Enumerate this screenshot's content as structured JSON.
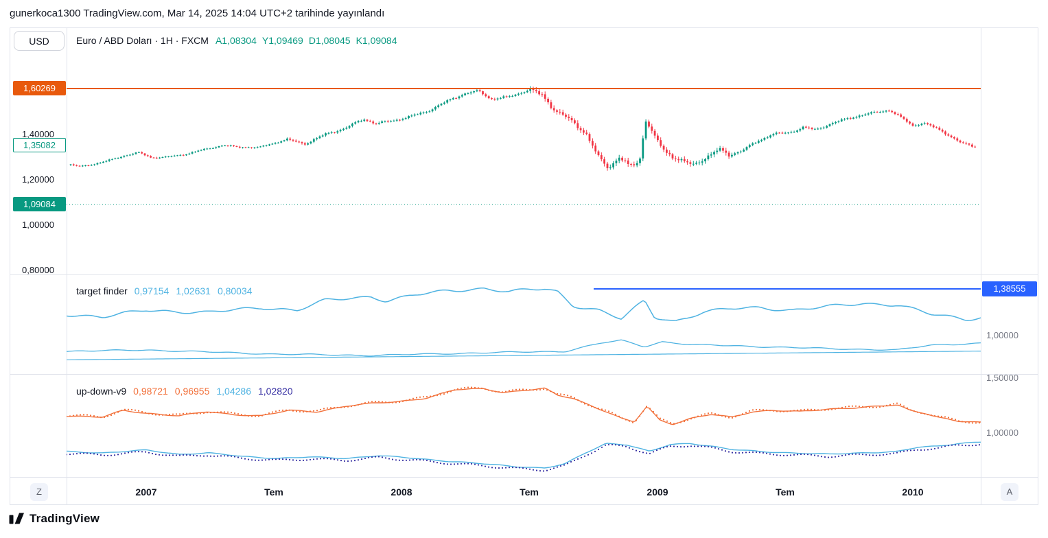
{
  "header": {
    "published_line": "gunerkoca1300 TradingView.com, Mar 14, 2025 14:04 UTC+2 tarihinde yayınlandı"
  },
  "toolbar": {
    "currency_button": "USD"
  },
  "footer": {
    "brand": "TradingView"
  },
  "colors": {
    "up": "#089981",
    "down": "#F23645",
    "accent_teal": "#089981",
    "accent_orange": "#E8590C",
    "skyblue": "#4FB3E2",
    "blue": "#2962FF",
    "orange3": "#F2713B",
    "navy": "#3730A3",
    "text": "#131722",
    "muted": "#787B86",
    "border": "#E0E3EB"
  },
  "main_pane": {
    "legend": {
      "title": "Euro / ABD Doları · 1H · FXCM",
      "ohlc": [
        {
          "key": "A",
          "value": "1,08304"
        },
        {
          "key": "Y",
          "value": "1,09469"
        },
        {
          "key": "D",
          "value": "1,08045"
        },
        {
          "key": "K",
          "value": "1,09084"
        }
      ]
    },
    "scale_labels": [
      {
        "text": "1,60269",
        "type": "badge-orange"
      },
      {
        "text": "1,40000",
        "type": "plain"
      },
      {
        "text": "1,35082",
        "type": "badge-outline"
      },
      {
        "text": "1,20000",
        "type": "plain"
      },
      {
        "text": "1,09084",
        "type": "badge-teal"
      },
      {
        "text": "1,00000",
        "type": "plain"
      },
      {
        "text": "0,80000",
        "type": "plain"
      }
    ]
  },
  "target_pane": {
    "legend": {
      "title": "target finder",
      "values": [
        "0,97154",
        "1,02631",
        "0,80034"
      ]
    }
  },
  "updown_pane": {
    "legend": {
      "title": "up-down-v9",
      "values": [
        {
          "text": "0,98721",
          "color_key": "orange3"
        },
        {
          "text": "0,96955",
          "color_key": "orange3"
        },
        {
          "text": "1,04286",
          "color_key": "skyblue"
        },
        {
          "text": "1,02820",
          "color_key": "navy"
        }
      ]
    }
  },
  "right_scale": [
    {
      "text": "1,38555",
      "pane": "p2",
      "type": "badge-blue"
    },
    {
      "text": "1,00000",
      "pane": "p2",
      "type": "plain"
    },
    {
      "text": "1,50000",
      "pane": "p3",
      "type": "plain"
    },
    {
      "text": "1,00000",
      "pane": "p3",
      "type": "plain"
    }
  ],
  "time_axis": {
    "left_button": "Z",
    "right_button": "A"
  },
  "chart_data": [
    {
      "type": "candlestick",
      "name": "eurusd-price",
      "title": "Euro / ABD Doları · 1H · FXCM",
      "x_range": [
        2006.69,
        2010.27
      ],
      "ylim": [
        0.78,
        1.87
      ],
      "x_ticks": [
        {
          "t": 2007,
          "label": "2007"
        },
        {
          "t": 2007.5,
          "label": "Tem"
        },
        {
          "t": 2008,
          "label": "2008"
        },
        {
          "t": 2008.5,
          "label": "Tem"
        },
        {
          "t": 2009,
          "label": "2009"
        },
        {
          "t": 2009.5,
          "label": "Tem"
        },
        {
          "t": 2010,
          "label": "2010"
        }
      ],
      "price_lines": [
        {
          "value": 1.60269,
          "color_key": "accent_orange",
          "style": "solid"
        },
        {
          "value": 1.09084,
          "color_key": "accent_teal",
          "style": "dotted"
        }
      ],
      "keypoints": [
        [
          2006.69,
          1.27
        ],
        [
          2006.74,
          1.258
        ],
        [
          2006.79,
          1.268
        ],
        [
          2006.85,
          1.284
        ],
        [
          2006.92,
          1.308
        ],
        [
          2006.97,
          1.32
        ],
        [
          2007.02,
          1.298
        ],
        [
          2007.08,
          1.3
        ],
        [
          2007.15,
          1.312
        ],
        [
          2007.22,
          1.332
        ],
        [
          2007.3,
          1.352
        ],
        [
          2007.36,
          1.344
        ],
        [
          2007.44,
          1.342
        ],
        [
          2007.5,
          1.362
        ],
        [
          2007.55,
          1.378
        ],
        [
          2007.62,
          1.358
        ],
        [
          2007.7,
          1.4
        ],
        [
          2007.78,
          1.428
        ],
        [
          2007.85,
          1.468
        ],
        [
          2007.9,
          1.448
        ],
        [
          2007.97,
          1.462
        ],
        [
          2008.03,
          1.478
        ],
        [
          2008.1,
          1.502
        ],
        [
          2008.18,
          1.548
        ],
        [
          2008.24,
          1.578
        ],
        [
          2008.3,
          1.592
        ],
        [
          2008.35,
          1.556
        ],
        [
          2008.42,
          1.566
        ],
        [
          2008.5,
          1.598
        ],
        [
          2008.55,
          1.572
        ],
        [
          2008.6,
          1.508
        ],
        [
          2008.66,
          1.462
        ],
        [
          2008.72,
          1.408
        ],
        [
          2008.77,
          1.298
        ],
        [
          2008.81,
          1.252
        ],
        [
          2008.85,
          1.302
        ],
        [
          2008.89,
          1.258
        ],
        [
          2008.93,
          1.278
        ],
        [
          2008.955,
          1.468
        ],
        [
          2008.99,
          1.388
        ],
        [
          2009.03,
          1.322
        ],
        [
          2009.09,
          1.288
        ],
        [
          2009.14,
          1.262
        ],
        [
          2009.19,
          1.3
        ],
        [
          2009.24,
          1.332
        ],
        [
          2009.28,
          1.31
        ],
        [
          2009.33,
          1.328
        ],
        [
          2009.39,
          1.368
        ],
        [
          2009.45,
          1.402
        ],
        [
          2009.52,
          1.408
        ],
        [
          2009.57,
          1.432
        ],
        [
          2009.62,
          1.42
        ],
        [
          2009.68,
          1.448
        ],
        [
          2009.74,
          1.468
        ],
        [
          2009.8,
          1.486
        ],
        [
          2009.86,
          1.498
        ],
        [
          2009.91,
          1.508
        ],
        [
          2009.95,
          1.478
        ],
        [
          2010.0,
          1.438
        ],
        [
          2010.04,
          1.452
        ],
        [
          2010.09,
          1.428
        ],
        [
          2010.14,
          1.398
        ],
        [
          2010.19,
          1.362
        ],
        [
          2010.24,
          1.346
        ],
        [
          2010.29,
          1.352
        ]
      ]
    },
    {
      "type": "line",
      "name": "target-finder",
      "title": "target finder",
      "legend_values": [
        "0,97154",
        "1,02631",
        "0,80034"
      ],
      "ylim": [
        0.68,
        1.5
      ],
      "hline": {
        "value": 1.38555,
        "start_t": 2008.75,
        "color_key": "blue",
        "label": "1,38555"
      },
      "series": [
        {
          "name": "tf-fast",
          "color_key": "skyblue",
          "width": 1.5,
          "jitter": 0.016,
          "keypoints": [
            [
              2006.69,
              1.176
            ],
            [
              2006.83,
              1.153
            ],
            [
              2007.0,
              1.21
            ],
            [
              2007.24,
              1.19
            ],
            [
              2007.45,
              1.232
            ],
            [
              2007.59,
              1.21
            ],
            [
              2007.7,
              1.289
            ],
            [
              2007.88,
              1.323
            ],
            [
              2007.94,
              1.289
            ],
            [
              2008.05,
              1.334
            ],
            [
              2008.18,
              1.369
            ],
            [
              2008.32,
              1.391
            ],
            [
              2008.42,
              1.363
            ],
            [
              2008.56,
              1.386
            ],
            [
              2008.61,
              1.363
            ],
            [
              2008.67,
              1.25
            ],
            [
              2008.77,
              1.21
            ],
            [
              2008.86,
              1.136
            ],
            [
              2008.95,
              1.289
            ],
            [
              2008.99,
              1.153
            ],
            [
              2009.07,
              1.119
            ],
            [
              2009.18,
              1.193
            ],
            [
              2009.29,
              1.221
            ],
            [
              2009.4,
              1.232
            ],
            [
              2009.53,
              1.21
            ],
            [
              2009.67,
              1.238
            ],
            [
              2009.8,
              1.266
            ],
            [
              2009.94,
              1.255
            ],
            [
              2010.07,
              1.176
            ],
            [
              2010.21,
              1.136
            ],
            [
              2010.27,
              1.153
            ]
          ]
        },
        {
          "name": "tf-mid",
          "color_key": "skyblue",
          "width": 1.3,
          "jitter": 0.006,
          "keypoints": [
            [
              2006.69,
              0.87
            ],
            [
              2007.0,
              0.881
            ],
            [
              2007.5,
              0.847
            ],
            [
              2007.88,
              0.836
            ],
            [
              2008.32,
              0.858
            ],
            [
              2008.64,
              0.87
            ],
            [
              2008.78,
              0.938
            ],
            [
              2008.86,
              0.96
            ],
            [
              2008.95,
              0.909
            ],
            [
              2009.02,
              0.949
            ],
            [
              2009.13,
              0.926
            ],
            [
              2009.4,
              0.909
            ],
            [
              2009.67,
              0.892
            ],
            [
              2009.94,
              0.881
            ],
            [
              2010.07,
              0.92
            ],
            [
              2010.27,
              0.938
            ]
          ]
        },
        {
          "name": "tf-base",
          "color_key": "skyblue",
          "width": 1.2,
          "jitter": 0,
          "keypoints": [
            [
              2006.69,
              0.8
            ],
            [
              2010.27,
              0.872
            ]
          ]
        }
      ]
    },
    {
      "type": "line",
      "name": "up-down-v9",
      "title": "up-down-v9",
      "legend_values": [
        "0,98721",
        "0,96955",
        "1,04286",
        "1,02820"
      ],
      "ylim": [
        0.6,
        1.54
      ],
      "series": [
        {
          "name": "up-line",
          "style": "line",
          "color_key": "orange3",
          "width": 1.4,
          "jitter": 0.006,
          "keypoints": [
            [
              2006.69,
              1.156
            ],
            [
              2006.83,
              1.144
            ],
            [
              2006.91,
              1.206
            ],
            [
              2007.0,
              1.181
            ],
            [
              2007.13,
              1.156
            ],
            [
              2007.24,
              1.194
            ],
            [
              2007.34,
              1.169
            ],
            [
              2007.45,
              1.156
            ],
            [
              2007.56,
              1.206
            ],
            [
              2007.67,
              1.194
            ],
            [
              2007.78,
              1.244
            ],
            [
              2007.88,
              1.269
            ],
            [
              2007.99,
              1.288
            ],
            [
              2008.1,
              1.319
            ],
            [
              2008.21,
              1.394
            ],
            [
              2008.32,
              1.406
            ],
            [
              2008.4,
              1.369
            ],
            [
              2008.51,
              1.394
            ],
            [
              2008.56,
              1.406
            ],
            [
              2008.61,
              1.344
            ],
            [
              2008.67,
              1.319
            ],
            [
              2008.72,
              1.269
            ],
            [
              2008.8,
              1.194
            ],
            [
              2008.86,
              1.131
            ],
            [
              2008.91,
              1.1
            ],
            [
              2008.96,
              1.244
            ],
            [
              2009.01,
              1.119
            ],
            [
              2009.06,
              1.081
            ],
            [
              2009.13,
              1.131
            ],
            [
              2009.21,
              1.169
            ],
            [
              2009.29,
              1.144
            ],
            [
              2009.37,
              1.194
            ],
            [
              2009.45,
              1.206
            ],
            [
              2009.56,
              1.194
            ],
            [
              2009.67,
              1.219
            ],
            [
              2009.78,
              1.231
            ],
            [
              2009.88,
              1.244
            ],
            [
              2009.94,
              1.256
            ],
            [
              2009.99,
              1.206
            ],
            [
              2010.05,
              1.181
            ],
            [
              2010.1,
              1.144
            ],
            [
              2010.18,
              1.106
            ],
            [
              2010.27,
              1.094
            ]
          ]
        },
        {
          "name": "up-dots",
          "style": "dots",
          "color_key": "orange3",
          "jitter": 0.012,
          "offset": 0.004,
          "keypoints_of": 0
        },
        {
          "name": "down-line",
          "style": "line",
          "color_key": "skyblue",
          "width": 1.4,
          "jitter": 0.005,
          "keypoints": [
            [
              2006.69,
              0.831
            ],
            [
              2006.83,
              0.819
            ],
            [
              2007.0,
              0.844
            ],
            [
              2007.13,
              0.806
            ],
            [
              2007.24,
              0.819
            ],
            [
              2007.37,
              0.788
            ],
            [
              2007.51,
              0.769
            ],
            [
              2007.64,
              0.781
            ],
            [
              2007.78,
              0.769
            ],
            [
              2007.91,
              0.794
            ],
            [
              2008.05,
              0.769
            ],
            [
              2008.18,
              0.744
            ],
            [
              2008.32,
              0.719
            ],
            [
              2008.45,
              0.694
            ],
            [
              2008.56,
              0.681
            ],
            [
              2008.64,
              0.719
            ],
            [
              2008.72,
              0.819
            ],
            [
              2008.8,
              0.906
            ],
            [
              2008.88,
              0.894
            ],
            [
              2008.97,
              0.831
            ],
            [
              2009.05,
              0.894
            ],
            [
              2009.13,
              0.906
            ],
            [
              2009.21,
              0.881
            ],
            [
              2009.29,
              0.85
            ],
            [
              2009.4,
              0.831
            ],
            [
              2009.53,
              0.819
            ],
            [
              2009.67,
              0.806
            ],
            [
              2009.8,
              0.819
            ],
            [
              2009.94,
              0.831
            ],
            [
              2010.02,
              0.869
            ],
            [
              2010.1,
              0.881
            ],
            [
              2010.18,
              0.906
            ],
            [
              2010.27,
              0.919
            ]
          ]
        },
        {
          "name": "down-dots",
          "style": "dots",
          "color_key": "navy",
          "jitter": 0.01,
          "offset": -0.018,
          "keypoints_of": 2
        }
      ]
    }
  ]
}
